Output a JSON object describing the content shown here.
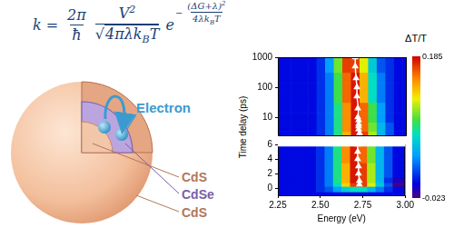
{
  "formula": {
    "lhs": "k",
    "equals": "=",
    "fractions": [
      {
        "num": [
          {
            "t": "2π"
          }
        ],
        "den": [
          {
            "t": "ħ"
          }
        ]
      },
      {
        "num": [
          {
            "t": "V"
          },
          {
            "t": "2",
            "sup": true
          }
        ],
        "root": "√",
        "den": [
          {
            "t": "4πλk"
          },
          {
            "t": "B",
            "sub": true
          },
          {
            "t": "T"
          }
        ]
      }
    ],
    "base": "e",
    "exponent": {
      "sign": "−",
      "num": [
        {
          "t": "(ΔG+λ)"
        },
        {
          "t": "2",
          "sup": true
        }
      ],
      "den": [
        {
          "t": "4λk"
        },
        {
          "t": "B",
          "sub": true
        },
        {
          "t": "T"
        }
      ]
    }
  },
  "diagram": {
    "electron": "Electron",
    "layers": [
      "CdS",
      "CdSe",
      "CdS"
    ]
  },
  "chart_data": {
    "type": "heatmap",
    "x_label": "Energy (eV)",
    "y_label": "Time delay (ps)",
    "xlim": [
      2.25,
      3.0
    ],
    "xticks": [
      2.25,
      {
        "value": 2.5,
        "label": "2.50"
      },
      2.75,
      {
        "value": 3.0,
        "label": "3.00"
      }
    ],
    "panels": [
      {
        "ylim": [
          2.5,
          1000
        ],
        "yticks": [
          10,
          100,
          1000
        ],
        "log": "y"
      },
      {
        "ylim": [
          -1,
          6
        ],
        "yticks": [
          0,
          2,
          4,
          6
        ]
      }
    ],
    "grid": false,
    "x": [
      2.25,
      2.3,
      2.35,
      2.4,
      2.45,
      2.5,
      2.55,
      2.6,
      2.65,
      2.7,
      2.75,
      2.8,
      2.85,
      2.9,
      2.95,
      3.0
    ],
    "y": [
      -1,
      0,
      0.5,
      1,
      2,
      3,
      4,
      5,
      6,
      8,
      10,
      20,
      50,
      100,
      200,
      500,
      1000
    ],
    "cells": [
      [
        0,
        0,
        0,
        0,
        0,
        0,
        0,
        0,
        0,
        0,
        0,
        0,
        0,
        0,
        0,
        0
      ],
      [
        0,
        0,
        0,
        0,
        0,
        0.01,
        0.02,
        0.04,
        0.06,
        0.07,
        0.07,
        0.05,
        0.03,
        0.01,
        0,
        0
      ],
      [
        0,
        0,
        0,
        0,
        0,
        0.01,
        0.03,
        0.07,
        0.13,
        0.17,
        0.17,
        0.12,
        0.06,
        0.02,
        -0.02,
        -0.02
      ],
      [
        0,
        0,
        0,
        0,
        0,
        0.01,
        0.03,
        0.08,
        0.14,
        0.18,
        0.17,
        0.11,
        0.05,
        0.01,
        -0.01,
        -0.01
      ],
      [
        0,
        0,
        0,
        0,
        0,
        0.01,
        0.03,
        0.08,
        0.14,
        0.18,
        0.17,
        0.11,
        0.05,
        0.02,
        0,
        0
      ],
      [
        0,
        0,
        0,
        0,
        0,
        0.01,
        0.03,
        0.08,
        0.14,
        0.18,
        0.17,
        0.11,
        0.05,
        0.02,
        0,
        0
      ],
      [
        0,
        0,
        0,
        0,
        0,
        0.01,
        0.03,
        0.08,
        0.15,
        0.18,
        0.16,
        0.1,
        0.05,
        0.02,
        0,
        0
      ],
      [
        0,
        0,
        0,
        0,
        0,
        0.01,
        0.03,
        0.08,
        0.15,
        0.18,
        0.16,
        0.1,
        0.05,
        0.02,
        0,
        0
      ],
      [
        0,
        0,
        0,
        0,
        0,
        0.01,
        0.03,
        0.08,
        0.15,
        0.18,
        0.16,
        0.1,
        0.05,
        0.02,
        0,
        0
      ],
      [
        0,
        0,
        0,
        0,
        0,
        0.01,
        0.03,
        0.08,
        0.15,
        0.18,
        0.16,
        0.09,
        0.04,
        0.01,
        0,
        0
      ],
      [
        0,
        0,
        0,
        0,
        0,
        0.01,
        0.03,
        0.08,
        0.15,
        0.18,
        0.16,
        0.09,
        0.04,
        0.01,
        0,
        0
      ],
      [
        0,
        0,
        0,
        0,
        0,
        0.01,
        0.03,
        0.08,
        0.15,
        0.18,
        0.16,
        0.09,
        0.04,
        0.01,
        0,
        0
      ],
      [
        0,
        0,
        0,
        0,
        0,
        0.01,
        0.03,
        0.09,
        0.16,
        0.18,
        0.14,
        0.07,
        0.03,
        0.01,
        0,
        0
      ],
      [
        0,
        0,
        0,
        0,
        0,
        0.01,
        0.03,
        0.09,
        0.16,
        0.18,
        0.14,
        0.07,
        0.03,
        0.01,
        0,
        0
      ],
      [
        0,
        0,
        0,
        0,
        0,
        0.01,
        0.03,
        0.09,
        0.16,
        0.18,
        0.14,
        0.07,
        0.03,
        0.01,
        0,
        0
      ],
      [
        0,
        0,
        0,
        0,
        0,
        0.01,
        0.04,
        0.1,
        0.17,
        0.17,
        0.12,
        0.06,
        0.02,
        0.01,
        0,
        0
      ],
      [
        0,
        0,
        0,
        0,
        0,
        0.01,
        0.04,
        0.1,
        0.17,
        0.17,
        0.12,
        0.06,
        0.02,
        0.01,
        0,
        0
      ]
    ],
    "colorbar": {
      "label": "ΔT/T",
      "range": [
        -0.023,
        0.185
      ],
      "ticks": [
        -0.023,
        0.185
      ]
    },
    "peak": {
      "x": [
        2.73,
        2.73,
        2.725,
        2.725,
        2.72,
        2.72,
        2.72,
        2.72,
        2.715,
        2.715,
        2.71,
        2.71,
        2.705,
        2.7,
        2.7
      ],
      "y": [
        0.5,
        1,
        2,
        3,
        4,
        5,
        6,
        8,
        10,
        20,
        50,
        100,
        200,
        500,
        1000
      ],
      "color": "#ffffff",
      "marker": "triangle",
      "line_style": "solid"
    }
  }
}
